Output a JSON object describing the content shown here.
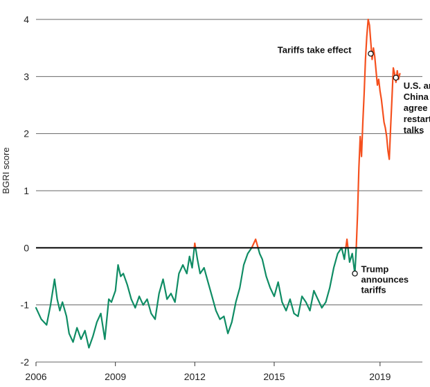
{
  "chart_data": {
    "type": "line",
    "title": "",
    "xlabel": "",
    "ylabel": "BGRI score",
    "xlim": [
      2006.0,
      2020.6
    ],
    "ylim": [
      -2,
      4
    ],
    "x_ticks": [
      2006,
      2009,
      2012,
      2015,
      2019
    ],
    "x_tick_labels": [
      "2006",
      "2009",
      "2012",
      "2015",
      "2019"
    ],
    "y_ticks": [
      -2,
      -1,
      0,
      1,
      2,
      3,
      4
    ],
    "y_tick_labels": [
      "-2",
      "-1",
      "0",
      "1",
      "2",
      "3",
      "4"
    ],
    "grid": "horizontal",
    "colors": {
      "positive": "#f5501e",
      "negative": "#0f8c64",
      "zero_line": "#111111",
      "grid": "#666666"
    },
    "series": [
      {
        "x": [
          2006.0,
          2006.2,
          2006.4,
          2006.55,
          2006.7,
          2006.8,
          2006.9,
          2007.0,
          2007.15,
          2007.25,
          2007.4,
          2007.55,
          2007.7,
          2007.85,
          2008.0,
          2008.15,
          2008.3,
          2008.45,
          2008.6,
          2008.75,
          2008.85,
          2009.0,
          2009.1,
          2009.2,
          2009.3,
          2009.45,
          2009.6,
          2009.75,
          2009.9,
          2010.05,
          2010.2,
          2010.35,
          2010.5,
          2010.65,
          2010.8,
          2010.95,
          2011.1,
          2011.25,
          2011.4,
          2011.55,
          2011.7,
          2011.8,
          2011.9,
          2012.0,
          2012.1,
          2012.2,
          2012.35,
          2012.5,
          2012.65,
          2012.8,
          2012.95,
          2013.1,
          2013.25,
          2013.4,
          2013.55,
          2013.7,
          2013.85,
          2014.0,
          2014.15,
          2014.3,
          2014.45,
          2014.55,
          2014.7,
          2014.85,
          2015.0,
          2015.15,
          2015.3,
          2015.45,
          2015.6,
          2015.75,
          2015.9,
          2016.05,
          2016.2,
          2016.35,
          2016.5,
          2016.65,
          2016.8,
          2016.95,
          2017.1,
          2017.25,
          2017.4,
          2017.55,
          2017.65,
          2017.75,
          2017.85,
          2017.95,
          2018.05,
          2018.1,
          2018.15,
          2018.2,
          2018.25,
          2018.3,
          2018.35,
          2018.4,
          2018.45,
          2018.5,
          2018.55,
          2018.6,
          2018.65,
          2018.7,
          2018.75,
          2018.8,
          2018.85,
          2018.9,
          2018.95,
          2019.0,
          2019.05,
          2019.1,
          2019.15,
          2019.2,
          2019.25,
          2019.3,
          2019.35,
          2019.4,
          2019.45,
          2019.5,
          2019.55,
          2019.6,
          2019.65,
          2019.7,
          2019.75
        ],
        "y": [
          -1.05,
          -1.25,
          -1.35,
          -1.0,
          -0.55,
          -0.9,
          -1.1,
          -0.95,
          -1.2,
          -1.5,
          -1.65,
          -1.4,
          -1.6,
          -1.45,
          -1.75,
          -1.55,
          -1.3,
          -1.15,
          -1.6,
          -0.9,
          -0.95,
          -0.75,
          -0.3,
          -0.5,
          -0.45,
          -0.65,
          -0.9,
          -1.05,
          -0.85,
          -1.0,
          -0.9,
          -1.15,
          -1.25,
          -0.8,
          -0.55,
          -0.9,
          -0.8,
          -0.95,
          -0.45,
          -0.3,
          -0.45,
          -0.15,
          -0.35,
          0.08,
          -0.2,
          -0.45,
          -0.35,
          -0.6,
          -0.85,
          -1.1,
          -1.25,
          -1.2,
          -1.5,
          -1.3,
          -0.95,
          -0.7,
          -0.3,
          -0.1,
          0.0,
          0.15,
          -0.1,
          -0.2,
          -0.5,
          -0.7,
          -0.85,
          -0.6,
          -0.95,
          -1.1,
          -0.9,
          -1.15,
          -1.2,
          -0.85,
          -0.95,
          -1.1,
          -0.75,
          -0.9,
          -1.05,
          -0.95,
          -0.7,
          -0.35,
          -0.1,
          0.0,
          -0.2,
          0.15,
          -0.25,
          -0.1,
          -0.45,
          0.0,
          0.6,
          1.4,
          1.95,
          1.6,
          2.2,
          2.7,
          3.3,
          3.7,
          4.0,
          3.9,
          3.6,
          3.3,
          3.5,
          3.35,
          3.1,
          2.85,
          2.95,
          2.75,
          2.6,
          2.4,
          2.2,
          2.1,
          1.95,
          1.7,
          1.55,
          2.1,
          2.6,
          3.15,
          3.05,
          2.9,
          3.1,
          2.95,
          3.05
        ]
      }
    ],
    "annotations": [
      {
        "text": "Trump announces tariffs",
        "lines": [
          "Trump",
          "announces",
          "tariffs"
        ],
        "x": 2018.05,
        "y": -0.45
      },
      {
        "text": "Tariffs take effect",
        "lines": [
          "Tariffs take effect"
        ],
        "x": 2018.65,
        "y": 3.4
      },
      {
        "text": "U.S. and China agree to restart talks",
        "lines": [
          "U.S. and",
          "China",
          "agree to",
          "restart",
          "talks"
        ],
        "x": 2019.6,
        "y": 2.98
      }
    ]
  }
}
